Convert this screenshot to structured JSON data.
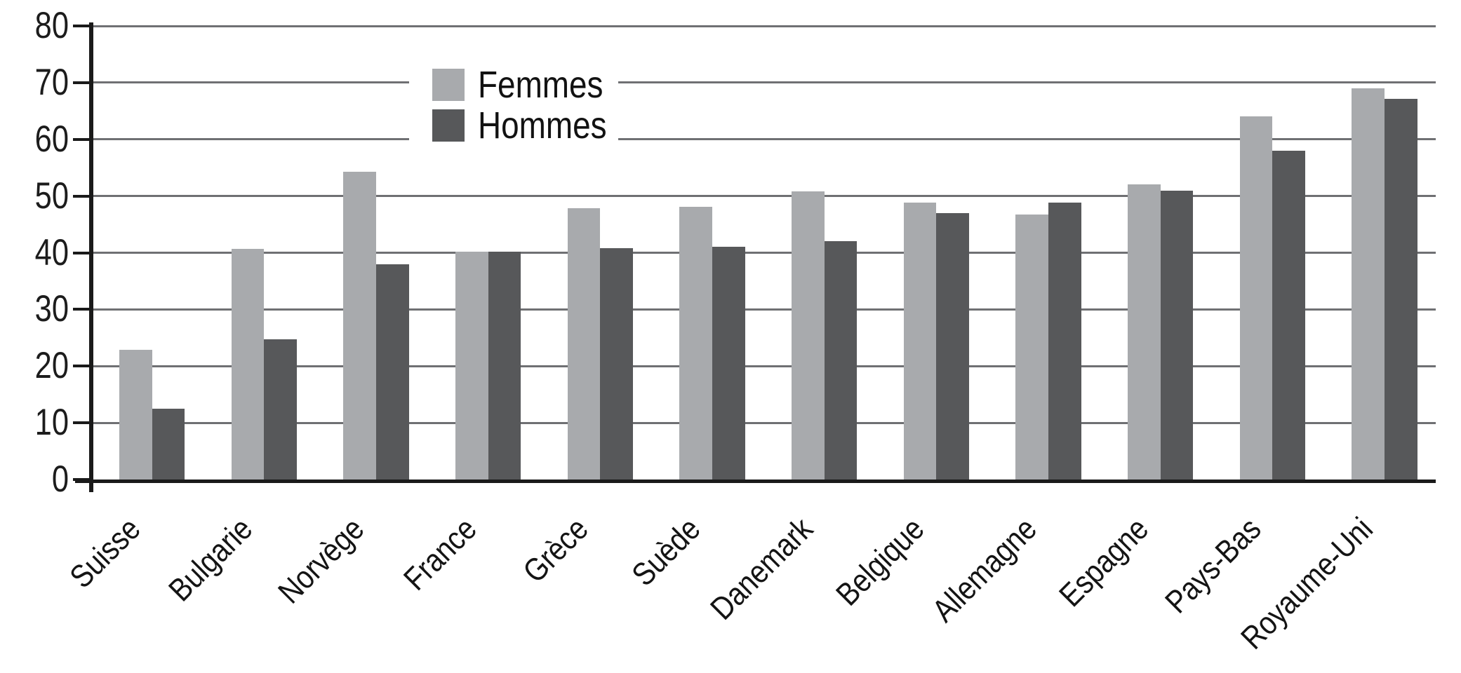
{
  "chart_data": {
    "type": "bar",
    "title": "",
    "xlabel": "",
    "ylabel": "",
    "categories": [
      "Suisse",
      "Bulgarie",
      "Norvège",
      "France",
      "Grèce",
      "Suède",
      "Danemark",
      "Belgique",
      "Allemagne",
      "Espagne",
      "Pays-Bas",
      "Royaume-Uni"
    ],
    "series": [
      {
        "name": "Femmes",
        "color": "#a8aaad",
        "values": [
          22.9,
          40.7,
          54.3,
          40.2,
          47.8,
          48.1,
          50.8,
          48.9,
          46.7,
          52.1,
          64.0,
          69.0
        ]
      },
      {
        "name": "Hommes",
        "color": "#57585a",
        "values": [
          12.5,
          24.7,
          38.0,
          40.2,
          40.8,
          41.0,
          42.0,
          47.0,
          48.9,
          51.0,
          58.0,
          67.2
        ]
      }
    ],
    "ylim": [
      0,
      80
    ],
    "ytick_interval": 10,
    "ytick_labels": [
      "0",
      "10",
      "20",
      "30",
      "40",
      "50",
      "60",
      "70",
      "80"
    ],
    "grid": true,
    "legend_position": "top-center-left",
    "x_label_rotation_deg": 45
  },
  "colors": {
    "femmes_bar": "#a8aaad",
    "hommes_bar": "#57585a",
    "gridline": "#6f7073",
    "axis": "#1a1a1a",
    "background": "#ffffff",
    "text": "#141414"
  }
}
